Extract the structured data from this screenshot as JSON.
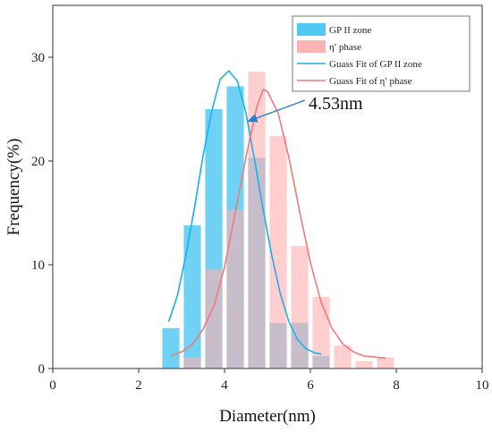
{
  "chart_data": {
    "type": "bar",
    "xlabel": "Diameter(nm)",
    "ylabel": "Frequency(%)",
    "xlim": [
      0,
      10
    ],
    "ylim": [
      0,
      35
    ],
    "x_ticks": [
      0,
      2,
      4,
      6,
      8,
      10
    ],
    "y_ticks": [
      0,
      10,
      20,
      30
    ],
    "grid": false,
    "legend_position": "top-right",
    "bar_width": 0.4,
    "series": [
      {
        "name": "GP II zone",
        "kind": "bar",
        "color": "#4fc8f3",
        "x": [
          2.75,
          3.25,
          3.75,
          4.25,
          4.75,
          5.25,
          5.75,
          6.25
        ],
        "values": [
          3.9,
          13.8,
          25.0,
          27.2,
          20.3,
          4.4,
          4.4,
          1.2
        ]
      },
      {
        "name": "η′ phase",
        "kind": "bar",
        "color": "#ffb2b2",
        "x": [
          3.25,
          3.75,
          4.25,
          4.75,
          5.25,
          5.75,
          6.25,
          6.75,
          7.25,
          7.75
        ],
        "values": [
          1.1,
          9.6,
          15.3,
          28.6,
          22.4,
          11.8,
          6.9,
          2.2,
          0.7,
          1.1
        ]
      },
      {
        "name": "Guass Fit of GP II zone",
        "kind": "line",
        "color": "#1ab0e8",
        "x": [
          2.7,
          2.9,
          3.1,
          3.3,
          3.5,
          3.7,
          3.9,
          4.1,
          4.3,
          4.5,
          4.7,
          4.9,
          5.1,
          5.3,
          5.5,
          5.7,
          5.9,
          6.1,
          6.25
        ],
        "values": [
          4.5,
          7.0,
          10.9,
          15.5,
          20.5,
          24.8,
          27.9,
          28.7,
          27.7,
          24.6,
          20.1,
          15.3,
          10.9,
          7.2,
          4.5,
          2.8,
          1.9,
          1.5,
          1.4
        ]
      },
      {
        "name": "Guass Fit of η′ phase",
        "kind": "line",
        "color": "#f07a7a",
        "x": [
          2.75,
          3.0,
          3.25,
          3.5,
          3.75,
          4.0,
          4.25,
          4.5,
          4.75,
          4.9,
          5.0,
          5.25,
          5.5,
          5.75,
          6.0,
          6.25,
          6.5,
          6.75,
          7.0,
          7.25,
          7.5,
          7.75
        ],
        "values": [
          1.2,
          1.6,
          2.3,
          3.8,
          6.0,
          9.8,
          15.0,
          20.4,
          25.2,
          26.9,
          26.7,
          24.6,
          20.3,
          15.1,
          10.2,
          6.4,
          3.9,
          2.4,
          1.6,
          1.2,
          1.1,
          1.0
        ]
      }
    ],
    "annotation": {
      "text": "4.53nm",
      "arrow_target": [
        4.53,
        23.8
      ]
    }
  }
}
